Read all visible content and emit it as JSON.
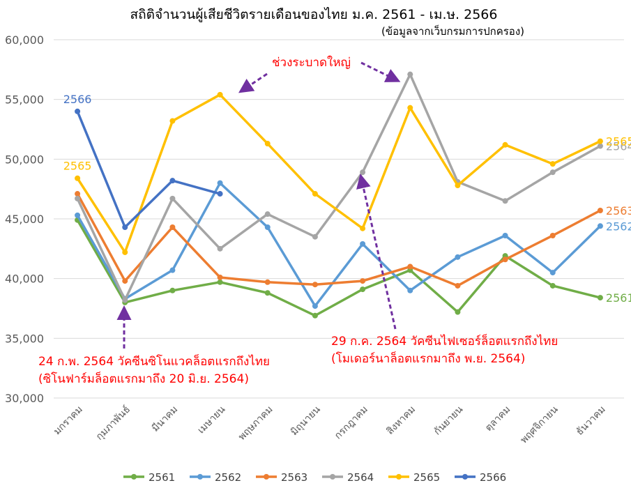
{
  "chart_data": {
    "type": "line",
    "title": "สถิติจำนวนผู้เสียชีวิตรายเดือนของไทย ม.ค. 2561 - เม.ษ. 2566",
    "subtitle": "(ข้อมูลจากเว็บกรมการปกครอง)",
    "categories": [
      "มกราคม",
      "กุมภาพันธ์",
      "มีนาคม",
      "เมษายน",
      "พฤษภาคม",
      "มิถุนายน",
      "กรกฎาคม",
      "สิงหาคม",
      "กันยายน",
      "ตุลาคม",
      "พฤศจิกายน",
      "ธันวาคม"
    ],
    "ylim": [
      30000,
      60000
    ],
    "yticks": [
      30000,
      35000,
      40000,
      45000,
      50000,
      55000,
      60000
    ],
    "ytick_labels": [
      "30,000",
      "35,000",
      "40,000",
      "45,000",
      "50,000",
      "55,000",
      "60,000"
    ],
    "grid": true,
    "legend_position": "bottom",
    "series": [
      {
        "name": "2561",
        "color": "#70ad47",
        "label": "2561",
        "label_anchor": "end",
        "values": [
          44900,
          38000,
          39000,
          39700,
          38800,
          36900,
          39100,
          40700,
          37200,
          41900,
          39400,
          38400
        ]
      },
      {
        "name": "2562",
        "color": "#5b9bd5",
        "label": "2562",
        "label_anchor": "end",
        "values": [
          45300,
          38300,
          40700,
          48000,
          44300,
          37700,
          42900,
          39000,
          41800,
          43600,
          40500,
          44400
        ]
      },
      {
        "name": "2563",
        "color": "#ed7d31",
        "label": "2563",
        "label_anchor": "end",
        "values": [
          47100,
          39800,
          44300,
          40100,
          39700,
          39500,
          39800,
          41000,
          39400,
          41600,
          43600,
          45700
        ]
      },
      {
        "name": "2564",
        "color": "#a5a5a5",
        "label": "2564",
        "label_anchor": "end",
        "values": [
          46700,
          38200,
          46700,
          42500,
          45400,
          43500,
          48900,
          57100,
          48100,
          46500,
          48900,
          51100
        ]
      },
      {
        "name": "2565",
        "color": "#ffc000",
        "label": "2565",
        "label_anchor": "both",
        "values": [
          48400,
          42200,
          53200,
          55400,
          51300,
          47100,
          44200,
          54300,
          47800,
          51200,
          49600,
          51500
        ]
      },
      {
        "name": "2566",
        "color": "#4472c4",
        "label": "2566",
        "label_anchor": "start",
        "values": [
          54000,
          44300,
          48200,
          47100,
          null,
          null,
          null,
          null,
          null,
          null,
          null,
          null
        ]
      }
    ],
    "annotations": [
      {
        "text": "ช่วงระบาดใหญ่"
      },
      {
        "line1": "24 ก.พ. 2564 วัคซีนซิโนแวคล็อตแรกถึงไทย",
        "line2": "(ซิโนฟาร์มล็อตแรกมาถึง 20 มิ.ย. 2564)"
      },
      {
        "line1": "29 ก.ค. 2564 วัคซีนไฟเซอร์ล็อตแรกถึงไทย",
        "line2": "(โมเดอร์นาล็อตแรกมาถึง พ.ย. 2564)"
      }
    ],
    "arrow_color": "#7030a0",
    "annotation_color": "#ff0000"
  }
}
